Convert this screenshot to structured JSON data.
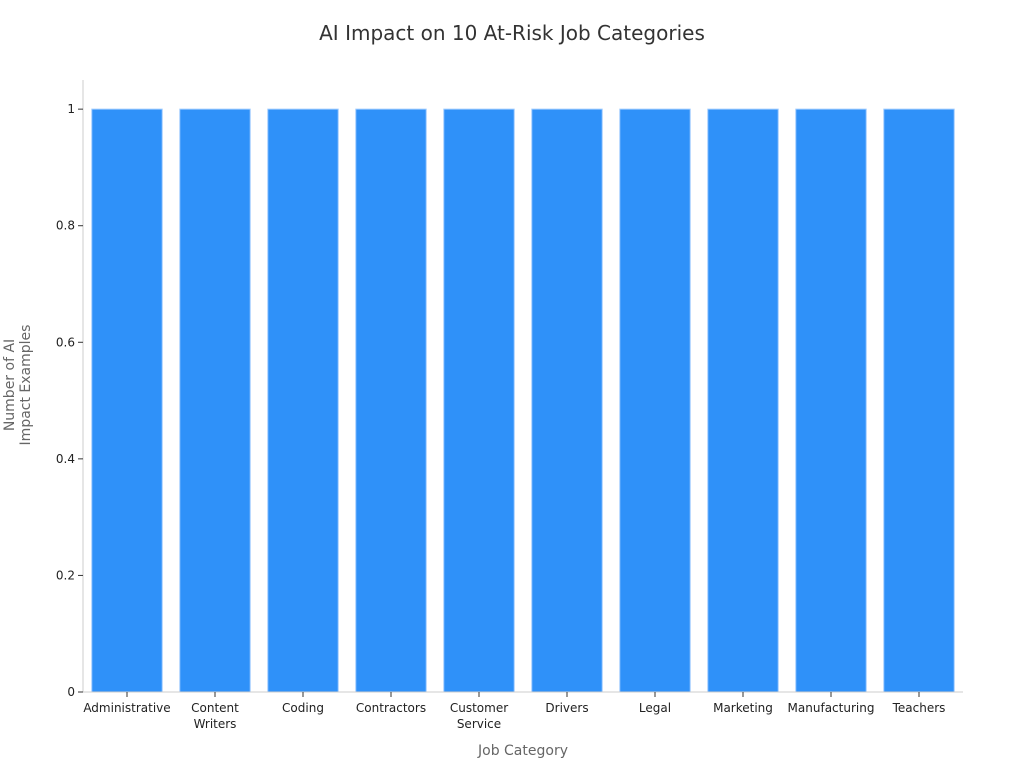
{
  "chart_data": {
    "type": "bar",
    "title": "AI Impact on 10 At-Risk Job Categories",
    "xlabel": "Job Category",
    "ylabel": [
      "Number of AI",
      "Impact Examples"
    ],
    "categories": [
      [
        "Administrative"
      ],
      [
        "Content",
        "Writers"
      ],
      [
        "Coding"
      ],
      [
        "Contractors"
      ],
      [
        "Customer",
        "Service"
      ],
      [
        "Drivers"
      ],
      [
        "Legal"
      ],
      [
        "Marketing"
      ],
      [
        "Manufacturing"
      ],
      [
        "Teachers"
      ]
    ],
    "values": [
      1,
      1,
      1,
      1,
      1,
      1,
      1,
      1,
      1,
      1
    ],
    "ylim": [
      0,
      1.05
    ],
    "yticks": [
      0,
      0.2,
      0.4,
      0.6,
      0.8,
      1
    ],
    "ytick_labels": [
      "0",
      "0.2",
      "0.4",
      "0.6",
      "0.8",
      "1"
    ],
    "grid": false,
    "bar_color": "#2f91f9"
  }
}
